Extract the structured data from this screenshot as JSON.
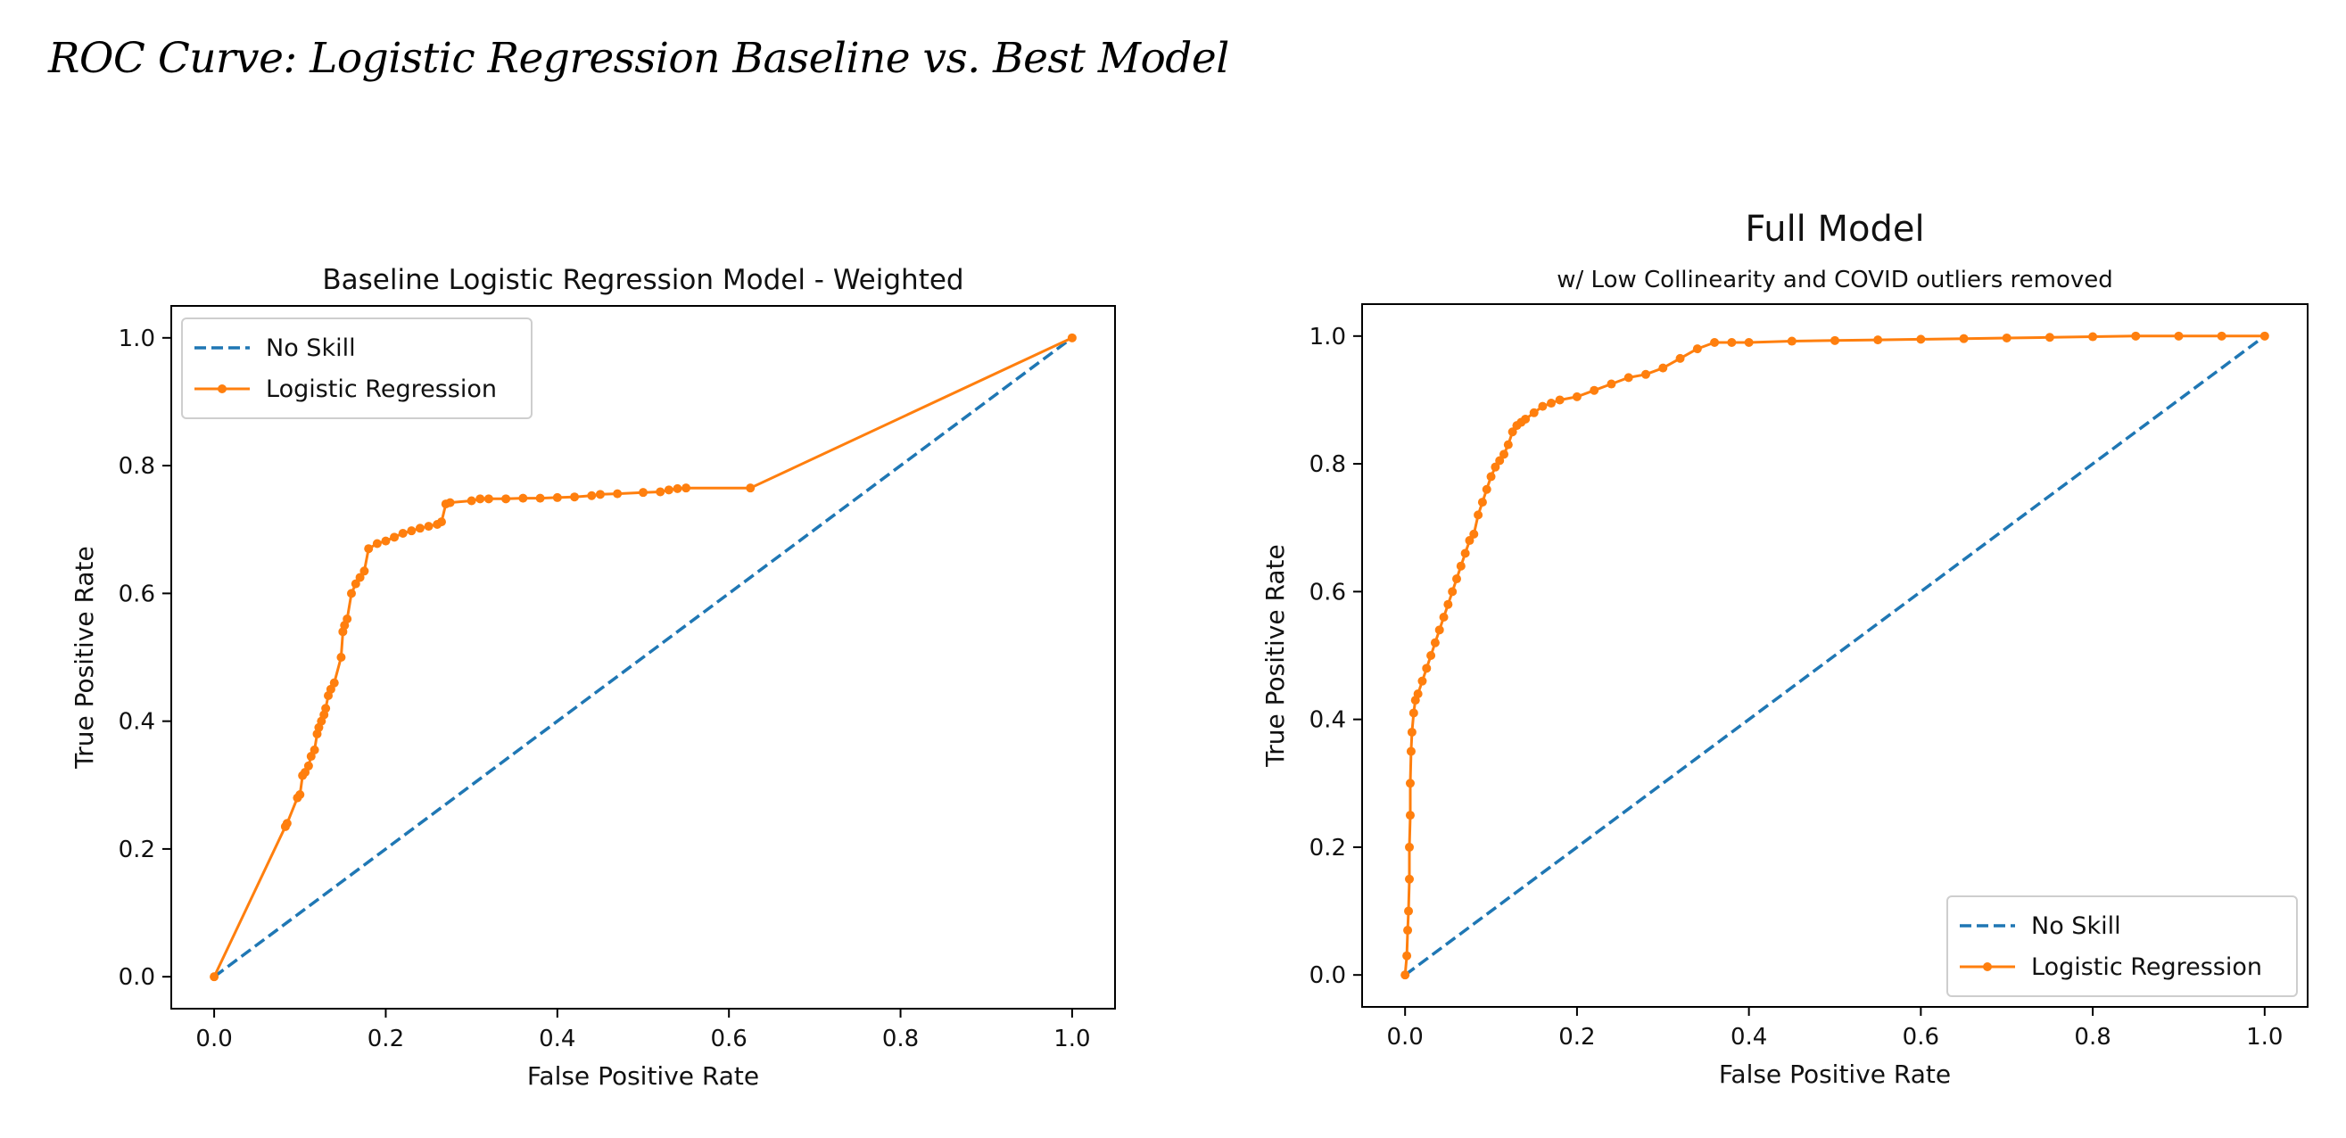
{
  "page": {
    "title": "ROC Curve: Logistic Regression Baseline vs. Best Model"
  },
  "colors": {
    "no_skill": "#1f77b4",
    "logistic_regression": "#ff7f0e",
    "axes": "#000000"
  },
  "chart_data": [
    {
      "type": "line",
      "title": "Baseline Logistic Regression Model - Weighted",
      "subtitle": "",
      "xlabel": "False Positive Rate",
      "ylabel": "True Positive Rate",
      "xlim": [
        -0.05,
        1.05
      ],
      "ylim": [
        -0.05,
        1.05
      ],
      "xticks": [
        "0.0",
        "0.2",
        "0.4",
        "0.6",
        "0.8",
        "1.0"
      ],
      "yticks": [
        "0.0",
        "0.2",
        "0.4",
        "0.6",
        "0.8",
        "1.0"
      ],
      "grid": false,
      "legend_position": "top-left",
      "series": [
        {
          "name": "No Skill",
          "style": "dashed",
          "markers": false,
          "color": "#1f77b4",
          "x": [
            0,
            1
          ],
          "y": [
            0,
            1
          ]
        },
        {
          "name": "Logistic Regression",
          "style": "solid",
          "markers": true,
          "color": "#ff7f0e",
          "x": [
            0,
            0.083,
            0.085,
            0.097,
            0.1,
            0.103,
            0.106,
            0.11,
            0.113,
            0.117,
            0.12,
            0.122,
            0.125,
            0.128,
            0.13,
            0.133,
            0.136,
            0.14,
            0.148,
            0.15,
            0.152,
            0.155,
            0.16,
            0.165,
            0.17,
            0.175,
            0.18,
            0.19,
            0.2,
            0.21,
            0.22,
            0.23,
            0.24,
            0.25,
            0.26,
            0.265,
            0.27,
            0.275,
            0.3,
            0.31,
            0.32,
            0.34,
            0.36,
            0.38,
            0.4,
            0.42,
            0.44,
            0.45,
            0.47,
            0.5,
            0.52,
            0.53,
            0.54,
            0.55,
            0.625,
            1.0
          ],
          "y": [
            0,
            0.235,
            0.24,
            0.28,
            0.285,
            0.315,
            0.32,
            0.33,
            0.345,
            0.355,
            0.38,
            0.39,
            0.4,
            0.41,
            0.42,
            0.44,
            0.45,
            0.46,
            0.5,
            0.54,
            0.55,
            0.56,
            0.6,
            0.615,
            0.625,
            0.635,
            0.67,
            0.678,
            0.682,
            0.688,
            0.694,
            0.698,
            0.702,
            0.705,
            0.708,
            0.712,
            0.74,
            0.742,
            0.745,
            0.748,
            0.748,
            0.748,
            0.749,
            0.749,
            0.75,
            0.751,
            0.753,
            0.755,
            0.756,
            0.758,
            0.759,
            0.762,
            0.764,
            0.765,
            0.765,
            1.0
          ]
        }
      ]
    },
    {
      "type": "line",
      "title": "Full Model",
      "subtitle": "w/ Low Collinearity and COVID outliers removed",
      "xlabel": "False Positive Rate",
      "ylabel": "True Positive Rate",
      "xlim": [
        -0.05,
        1.05
      ],
      "ylim": [
        -0.05,
        1.05
      ],
      "xticks": [
        "0.0",
        "0.2",
        "0.4",
        "0.6",
        "0.8",
        "1.0"
      ],
      "yticks": [
        "0.0",
        "0.2",
        "0.4",
        "0.6",
        "0.8",
        "1.0"
      ],
      "grid": false,
      "legend_position": "bottom-right",
      "series": [
        {
          "name": "No Skill",
          "style": "dashed",
          "markers": false,
          "color": "#1f77b4",
          "x": [
            0,
            1
          ],
          "y": [
            0,
            1
          ]
        },
        {
          "name": "Logistic Regression",
          "style": "solid",
          "markers": true,
          "color": "#ff7f0e",
          "x": [
            0,
            0.002,
            0.003,
            0.004,
            0.005,
            0.005,
            0.006,
            0.006,
            0.007,
            0.008,
            0.01,
            0.012,
            0.015,
            0.02,
            0.025,
            0.03,
            0.035,
            0.04,
            0.045,
            0.05,
            0.055,
            0.06,
            0.065,
            0.07,
            0.075,
            0.08,
            0.085,
            0.09,
            0.095,
            0.1,
            0.105,
            0.11,
            0.115,
            0.12,
            0.125,
            0.13,
            0.135,
            0.14,
            0.15,
            0.16,
            0.17,
            0.18,
            0.2,
            0.22,
            0.24,
            0.26,
            0.28,
            0.3,
            0.32,
            0.34,
            0.36,
            0.38,
            0.4,
            0.45,
            0.5,
            0.55,
            0.6,
            0.65,
            0.7,
            0.75,
            0.8,
            0.85,
            0.9,
            0.95,
            1.0
          ],
          "y": [
            0,
            0.03,
            0.07,
            0.1,
            0.15,
            0.2,
            0.25,
            0.3,
            0.35,
            0.38,
            0.41,
            0.43,
            0.44,
            0.46,
            0.48,
            0.5,
            0.52,
            0.54,
            0.56,
            0.58,
            0.6,
            0.62,
            0.64,
            0.66,
            0.68,
            0.69,
            0.72,
            0.74,
            0.76,
            0.78,
            0.795,
            0.805,
            0.815,
            0.83,
            0.85,
            0.86,
            0.865,
            0.87,
            0.88,
            0.89,
            0.895,
            0.9,
            0.905,
            0.915,
            0.925,
            0.935,
            0.94,
            0.95,
            0.965,
            0.98,
            0.99,
            0.99,
            0.99,
            0.992,
            0.993,
            0.994,
            0.995,
            0.996,
            0.997,
            0.998,
            0.999,
            1.0,
            1.0,
            1.0,
            1.0
          ]
        }
      ]
    }
  ]
}
